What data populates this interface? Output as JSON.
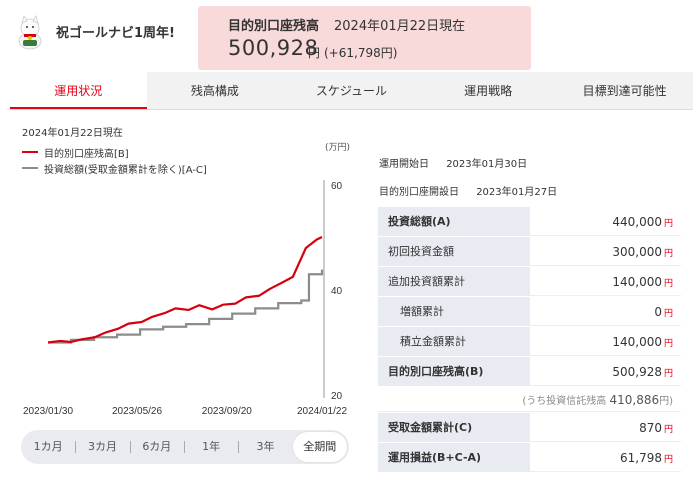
{
  "header": {
    "anniversary": "祝ゴールナビ1周年!",
    "balance_title": "目的別口座残高",
    "balance_date": "2024年01月22日現在",
    "balance_amount": "500,928",
    "balance_unit": "円",
    "balance_diff": "(+61,798円)"
  },
  "tabs": [
    {
      "label": "運用状況"
    },
    {
      "label": "残高構成"
    },
    {
      "label": "スケジュール"
    },
    {
      "label": "運用戦略"
    },
    {
      "label": "目標到達可能性"
    }
  ],
  "chart_meta": {
    "asof": "2024年01月22日現在",
    "legend_balance": "目的別口座残高[B]",
    "legend_invest": "投資総額(受取金額累計を除く)[A-C]",
    "unit": "(万円)"
  },
  "chart_data": {
    "type": "line",
    "ylim": [
      20,
      60
    ],
    "yticks": [
      "60",
      "40",
      "20"
    ],
    "xticks": [
      "2023/01/30",
      "2023/05/26",
      "2023/09/20",
      "2024/01/22"
    ],
    "colors": {
      "balance": "#d7000f",
      "invest": "#8c8c8c"
    },
    "series": [
      {
        "name": "目的別口座残高[B]",
        "x": [
          "2023/01/30",
          "2023/02/15",
          "2023/03/01",
          "2023/03/15",
          "2023/04/01",
          "2023/04/15",
          "2023/05/01",
          "2023/05/15",
          "2023/06/01",
          "2023/06/15",
          "2023/07/01",
          "2023/07/15",
          "2023/08/01",
          "2023/08/15",
          "2023/09/01",
          "2023/09/15",
          "2023/10/01",
          "2023/10/15",
          "2023/11/01",
          "2023/11/15",
          "2023/12/01",
          "2023/12/15",
          "2024/01/01",
          "2024/01/15",
          "2024/01/22"
        ],
        "values": [
          30.0,
          30.3,
          30.1,
          30.6,
          31.0,
          31.9,
          32.6,
          33.6,
          33.9,
          34.9,
          35.6,
          36.5,
          36.2,
          37.1,
          36.3,
          37.2,
          37.4,
          38.6,
          38.9,
          40.2,
          41.4,
          42.5,
          48.0,
          49.6,
          50.1
        ]
      },
      {
        "name": "投資総額(受取金額累計を除く)[A-C]",
        "x": [
          "2023/01/30",
          "2023/03/01",
          "2023/03/31",
          "2023/04/30",
          "2023/05/30",
          "2023/06/29",
          "2023/07/29",
          "2023/08/28",
          "2023/09/27",
          "2023/10/27",
          "2023/11/26",
          "2023/12/26",
          "2024/01/05",
          "2024/01/22"
        ],
        "values": [
          30.0,
          30.5,
          31.0,
          31.5,
          32.5,
          33.0,
          33.5,
          34.5,
          35.5,
          36.5,
          37.5,
          38.0,
          43.0,
          43.9
        ]
      }
    ]
  },
  "periods": [
    {
      "label": "1カ月"
    },
    {
      "label": "3カ月"
    },
    {
      "label": "6カ月"
    },
    {
      "label": "1年"
    },
    {
      "label": "3年"
    },
    {
      "label": "全期間"
    }
  ],
  "info": {
    "start_label": "運用開始日",
    "start_date": "2023年01月30日",
    "open_label": "目的別口座開設日",
    "open_date": "2023年01月27日"
  },
  "table": [
    {
      "label": "投資総額(A)",
      "value": "440,000",
      "unit": "円"
    },
    {
      "label": "初回投資金額",
      "value": "300,000",
      "unit": "円"
    },
    {
      "label": "追加投資額累計",
      "value": "140,000",
      "unit": "円"
    },
    {
      "label": "増額累計",
      "value": "0",
      "unit": "円"
    },
    {
      "label": "積立金額累計",
      "value": "140,000",
      "unit": "円"
    },
    {
      "label": "目的別口座残高(B)",
      "value": "500,928",
      "unit": "円"
    },
    {
      "label": "(うち投資信託残高",
      "value": "410,886",
      "unit": "円)"
    },
    {
      "label": "受取金額累計(C)",
      "value": "870",
      "unit": "円"
    },
    {
      "label": "運用損益(B+C-A)",
      "value": "61,798",
      "unit": "円"
    }
  ]
}
